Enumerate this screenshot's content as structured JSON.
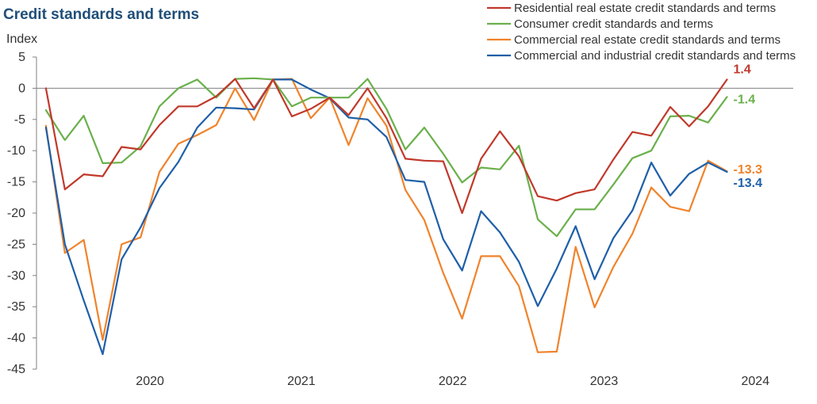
{
  "chart_data": {
    "type": "line",
    "title": "Credit standards and terms",
    "ylabel": "Index",
    "xlabel": "",
    "ylim": [
      -45,
      5
    ],
    "yticks": [
      5,
      0,
      -5,
      -10,
      -15,
      -20,
      -25,
      -30,
      -35,
      -40,
      -45
    ],
    "x_tick_labels": [
      "2020",
      "2021",
      "2022",
      "2023",
      "2024"
    ],
    "x_tick_positions": [
      5.5,
      13.5,
      21.5,
      29.5,
      37.5
    ],
    "x_range": [
      -0.5,
      39.5
    ],
    "grid": false,
    "legend_position": "top-right",
    "series": [
      {
        "name": "Residential real estate credit standards and terms",
        "color": "#c0392b",
        "end_label": "1.4",
        "values": [
          0,
          -16.2,
          -13.8,
          -14.1,
          -9.4,
          -9.8,
          -5.9,
          -2.9,
          -2.9,
          -1.3,
          1.5,
          -3.2,
          1.4,
          -4.5,
          -3.3,
          -1.5,
          -4.3,
          0,
          -4.8,
          -11.3,
          -11.6,
          -11.7,
          -20,
          -11.3,
          -6.9,
          -10.9,
          -17.3,
          -18,
          -16.8,
          -16.2,
          -11.4,
          -7,
          -7.6,
          -3,
          -6.1,
          -2.9,
          1.4
        ]
      },
      {
        "name": "Consumer credit standards and terms",
        "color": "#6ab04c",
        "end_label": "-1.4",
        "values": [
          -3.5,
          -8.3,
          -4.4,
          -12,
          -11.9,
          -9.3,
          -2.9,
          0,
          1.4,
          -1.5,
          1.5,
          1.6,
          1.4,
          -2.9,
          -1.5,
          -1.5,
          -1.5,
          1.5,
          -3.3,
          -9.8,
          -6.3,
          -10.5,
          -15.1,
          -12.7,
          -13,
          -9.2,
          -21,
          -23.7,
          -19.4,
          -19.4,
          -15.4,
          -11.2,
          -10,
          -4.5,
          -4.4,
          -5.5,
          -1.4
        ]
      },
      {
        "name": "Commercial real estate credit standards and terms",
        "color": "#f0832b",
        "end_label": "-13.3",
        "values": [
          -6,
          -26.4,
          -24.3,
          -40.3,
          -25,
          -23.9,
          -13.4,
          -8.9,
          -7.5,
          -5.9,
          0,
          -5.1,
          1.4,
          1.5,
          -4.8,
          -1.5,
          -9.1,
          -1.6,
          -6,
          -16.3,
          -21.1,
          -29.6,
          -36.9,
          -26.9,
          -26.9,
          -31.7,
          -42.3,
          -42.2,
          -25.4,
          -35.1,
          -28.6,
          -23.3,
          -15.9,
          -19,
          -19.7,
          -11.6,
          -13.3
        ]
      },
      {
        "name": "Commercial and industrial credit standards and terms",
        "color": "#1f5fa8",
        "end_label": "-13.4",
        "values": [
          -6.3,
          -25,
          -34,
          -42.6,
          -27.4,
          -22.3,
          -16,
          -11.8,
          -6.3,
          -3.1,
          -3.2,
          -3.4,
          1.4,
          1.4,
          -0.2,
          -1.6,
          -4.7,
          -5,
          -7.8,
          -14.7,
          -15,
          -24.2,
          -29.2,
          -19.7,
          -23.1,
          -27.8,
          -34.9,
          -28.9,
          -22.1,
          -30.6,
          -24,
          -19.6,
          -11.9,
          -17.2,
          -13.7,
          -11.9,
          -13.4
        ]
      }
    ]
  }
}
